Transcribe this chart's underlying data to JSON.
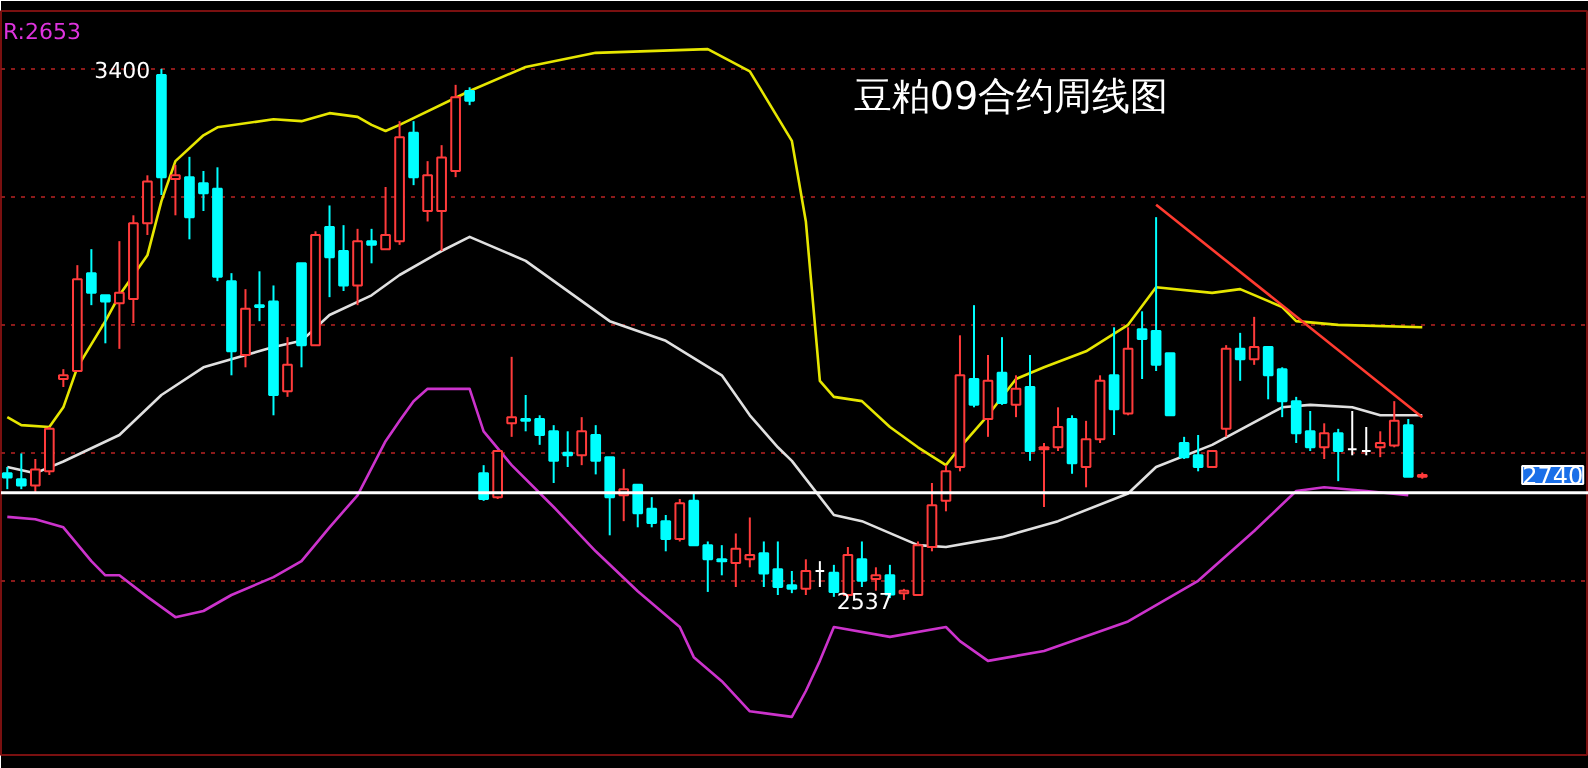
{
  "chart_data": {
    "type": "candlestick",
    "title": "豆粕09合约周线图",
    "categories": [
      null,
      null,
      null,
      null,
      null,
      null,
      null,
      null,
      null,
      null,
      null,
      null,
      null,
      null,
      null,
      null,
      null,
      null,
      null,
      null,
      null,
      null,
      null,
      null,
      null,
      null,
      null,
      null,
      null,
      null,
      null,
      null,
      null,
      null,
      null,
      null,
      null,
      null,
      null,
      null,
      null,
      null,
      null,
      null,
      null,
      null,
      null,
      null,
      null,
      null,
      null,
      null,
      null,
      null,
      null,
      null,
      null,
      null,
      null,
      null,
      null,
      null,
      null,
      null,
      null,
      null,
      null,
      null,
      null,
      null,
      null,
      null,
      null,
      null,
      null,
      null,
      null,
      null,
      null,
      null,
      null,
      null,
      null,
      null,
      null,
      null,
      null,
      null,
      null,
      null,
      null,
      null,
      null,
      null,
      null,
      null,
      null,
      null,
      null,
      null,
      null,
      null
    ],
    "ohlc": [
      [
        2743,
        2753,
        2717,
        2736
      ],
      [
        2733,
        2775,
        2717,
        2723
      ],
      [
        2723,
        2766,
        2710,
        2749
      ],
      [
        2746,
        2818,
        2740,
        2815
      ],
      [
        2896,
        2912,
        2883,
        2902
      ],
      [
        2909,
        3081,
        2909,
        3058
      ],
      [
        3068,
        3107,
        3016,
        3036
      ],
      [
        3032,
        3032,
        2954,
        3022
      ],
      [
        3019,
        3120,
        2945,
        3036
      ],
      [
        3026,
        3162,
        2987,
        3149
      ],
      [
        3149,
        3227,
        3130,
        3217
      ],
      [
        3390,
        3400,
        3195,
        3224
      ],
      [
        3221,
        3244,
        3162,
        3227
      ],
      [
        3224,
        3257,
        3123,
        3159
      ],
      [
        3214,
        3234,
        3169,
        3198
      ],
      [
        3205,
        3240,
        3055,
        3062
      ],
      [
        3055,
        3068,
        2902,
        2941
      ],
      [
        2935,
        3042,
        2915,
        3010
      ],
      [
        3016,
        3071,
        2990,
        3013
      ],
      [
        3022,
        3048,
        2837,
        2870
      ],
      [
        2876,
        2964,
        2867,
        2919
      ],
      [
        3084,
        3084,
        2915,
        2951
      ],
      [
        2951,
        3136,
        2951,
        3130
      ],
      [
        3143,
        3178,
        3029,
        3094
      ],
      [
        3104,
        3146,
        3039,
        3048
      ],
      [
        3048,
        3140,
        3016,
        3120
      ],
      [
        3120,
        3140,
        3084,
        3114
      ],
      [
        3107,
        3208,
        3107,
        3130
      ],
      [
        3120,
        3315,
        3114,
        3289
      ],
      [
        3296,
        3315,
        3211,
        3224
      ],
      [
        3169,
        3250,
        3152,
        3227
      ],
      [
        3169,
        3276,
        3104,
        3256
      ],
      [
        3234,
        3374,
        3224,
        3354
      ],
      [
        3364,
        3370,
        3341,
        3348
      ],
      [
        2743,
        2756,
        2698,
        2701
      ],
      [
        2704,
        2779,
        2701,
        2779
      ],
      [
        2824,
        2932,
        2802,
        2834
      ],
      [
        2831,
        2870,
        2811,
        2828
      ],
      [
        2831,
        2837,
        2789,
        2805
      ],
      [
        2811,
        2821,
        2727,
        2763
      ],
      [
        2776,
        2811,
        2753,
        2772
      ],
      [
        2772,
        2834,
        2756,
        2811
      ],
      [
        2805,
        2821,
        2741,
        2763
      ],
      [
        2769,
        2769,
        2642,
        2704
      ],
      [
        2707,
        2750,
        2665,
        2717
      ],
      [
        2724,
        2724,
        2655,
        2678
      ],
      [
        2685,
        2704,
        2655,
        2662
      ],
      [
        2665,
        2675,
        2616,
        2636
      ],
      [
        2636,
        2701,
        2632,
        2694
      ],
      [
        2698,
        2710,
        2626,
        2626
      ],
      [
        2626,
        2632,
        2550,
        2603
      ],
      [
        2603,
        2626,
        2577,
        2600
      ],
      [
        2597,
        2645,
        2558,
        2620
      ],
      [
        2603,
        2671,
        2590,
        2610
      ],
      [
        2613,
        2632,
        2558,
        2580
      ],
      [
        2587,
        2632,
        2545,
        2558
      ],
      [
        2561,
        2584,
        2548,
        2555
      ],
      [
        2555,
        2603,
        2545,
        2584
      ],
      [
        2584,
        2600,
        2558,
        2584
      ],
      [
        2581,
        2594,
        2542,
        2550
      ],
      [
        2545,
        2623,
        2541,
        2610
      ],
      [
        2603,
        2632,
        2558,
        2568
      ],
      [
        2571,
        2590,
        2552,
        2577
      ],
      [
        2577,
        2594,
        2540,
        2546
      ],
      [
        2548,
        2555,
        2537,
        2552
      ],
      [
        2545,
        2632,
        2545,
        2626
      ],
      [
        2623,
        2727,
        2616,
        2691
      ],
      [
        2698,
        2756,
        2681,
        2746
      ],
      [
        2753,
        2967,
        2746,
        2902
      ],
      [
        2896,
        3016,
        2850,
        2854
      ],
      [
        2831,
        2935,
        2802,
        2893
      ],
      [
        2906,
        2964,
        2854,
        2857
      ],
      [
        2854,
        2902,
        2834,
        2880
      ],
      [
        2883,
        2935,
        2763,
        2779
      ],
      [
        2782,
        2792,
        2688,
        2785
      ],
      [
        2785,
        2850,
        2779,
        2818
      ],
      [
        2831,
        2837,
        2742,
        2759
      ],
      [
        2753,
        2828,
        2720,
        2798
      ],
      [
        2798,
        2902,
        2792,
        2893
      ],
      [
        2902,
        2980,
        2805,
        2847
      ],
      [
        2840,
        2980,
        2837,
        2945
      ],
      [
        2977,
        3006,
        2896,
        2961
      ],
      [
        2974,
        3159,
        2909,
        2919
      ],
      [
        2938,
        2938,
        2837,
        2837
      ],
      [
        2792,
        2802,
        2766,
        2769
      ],
      [
        2772,
        2805,
        2746,
        2753
      ],
      [
        2753,
        2779,
        2753,
        2779
      ],
      [
        2815,
        2951,
        2802,
        2945
      ],
      [
        2945,
        2971,
        2893,
        2928
      ],
      [
        2928,
        2997,
        2919,
        2948
      ],
      [
        2948,
        2948,
        2863,
        2902
      ],
      [
        2912,
        2915,
        2834,
        2860
      ],
      [
        2860,
        2867,
        2792,
        2808
      ],
      [
        2811,
        2844,
        2779,
        2785
      ],
      [
        2785,
        2824,
        2766,
        2808
      ],
      [
        2808,
        2815,
        2730,
        2779
      ],
      [
        2782,
        2844,
        2772,
        2782
      ],
      [
        2779,
        2818,
        2772,
        2779
      ],
      [
        2785,
        2811,
        2769,
        2792
      ],
      [
        2788,
        2860,
        2785,
        2828
      ],
      [
        2821,
        2831,
        2737,
        2737
      ],
      [
        2737,
        2744,
        2734,
        2740
      ]
    ],
    "series": [
      {
        "type": "line",
        "color": "#e6e600",
        "values": [
          2834,
          2821,
          null,
          2818,
          2850,
          2915,
          null,
          2990,
          3032,
          null,
          3097,
          3185,
          3250,
          null,
          3292,
          3305,
          null,
          null,
          null,
          3318,
          null,
          3315,
          null,
          3328,
          null,
          3322,
          3309,
          3299,
          3309,
          null,
          null,
          null,
          null,
          3364,
          null,
          null,
          null,
          3403,
          null,
          null,
          null,
          null,
          3426,
          null,
          null,
          null,
          null,
          null,
          null,
          null,
          3432,
          null,
          null,
          3396,
          null,
          null,
          3283,
          3152,
          2893,
          2867,
          null,
          2860,
          null,
          2818,
          null,
          2785,
          null,
          2756,
          2785,
          null,
          2837,
          null,
          2896,
          null,
          2915,
          null,
          null,
          2941,
          null,
          null,
          2984,
          null,
          3045,
          null,
          null,
          null,
          3036,
          null,
          3042,
          null,
          null,
          3013,
          2990,
          null,
          null,
          2984,
          null,
          null,
          null,
          null,
          null,
          2980
        ]
      },
      {
        "type": "line",
        "color": "#e0e0e0",
        "values": [
          2753,
          null,
          2743,
          null,
          2762,
          null,
          null,
          null,
          2805,
          null,
          null,
          2870,
          null,
          null,
          2915,
          null,
          null,
          null,
          null,
          2948,
          null,
          2958,
          null,
          3000,
          null,
          null,
          3032,
          null,
          3065,
          null,
          null,
          3104,
          null,
          3127,
          null,
          null,
          null,
          3088,
          null,
          null,
          null,
          null,
          null,
          2990,
          null,
          null,
          null,
          2958,
          null,
          null,
          null,
          2902,
          null,
          2837,
          null,
          2785,
          2763,
          null,
          null,
          2675,
          null,
          2665,
          null,
          null,
          null,
          2626,
          null,
          2623,
          null,
          null,
          null,
          2639,
          null,
          null,
          null,
          2665,
          null,
          null,
          null,
          null,
          2710,
          null,
          2753,
          null,
          null,
          null,
          2789,
          null,
          null,
          null,
          null,
          2850,
          null,
          2854,
          null,
          null,
          2850,
          null,
          2837,
          null,
          null,
          2837
        ]
      },
      {
        "type": "line",
        "color": "#cc33cc",
        "values": [
          2672,
          null,
          2668,
          null,
          2655,
          null,
          2600,
          2577,
          2577,
          null,
          2542,
          null,
          2509,
          null,
          2519,
          null,
          2545,
          null,
          null,
          2574,
          null,
          2600,
          null,
          2655,
          null,
          2707,
          null,
          2795,
          2828,
          2860,
          2880,
          null,
          null,
          2880,
          2811,
          null,
          2756,
          null,
          null,
          2688,
          null,
          null,
          2616,
          null,
          null,
          2551,
          null,
          null,
          2493,
          2444,
          null,
          2405,
          null,
          2356,
          null,
          null,
          2347,
          2389,
          2438,
          2493,
          null,
          null,
          null,
          2477,
          null,
          null,
          null,
          2493,
          2470,
          null,
          2438,
          null,
          null,
          null,
          2454,
          null,
          null,
          null,
          null,
          null,
          2502,
          null,
          null,
          null,
          null,
          2568,
          null,
          null,
          null,
          2649,
          null,
          null,
          2714,
          null,
          2720,
          null,
          null,
          2714,
          null,
          null,
          2707,
          null
        ]
      },
      {
        "type": "line",
        "color": "#ff3b30",
        "values": [
          null,
          null,
          null,
          null,
          null,
          null,
          null,
          null,
          null,
          null,
          null,
          null,
          null,
          null,
          null,
          null,
          null,
          null,
          null,
          null,
          null,
          null,
          null,
          null,
          null,
          null,
          null,
          null,
          null,
          null,
          null,
          null,
          null,
          null,
          null,
          null,
          null,
          null,
          null,
          null,
          null,
          null,
          null,
          null,
          null,
          null,
          null,
          null,
          null,
          null,
          null,
          null,
          null,
          null,
          null,
          null,
          null,
          null,
          null,
          null,
          null,
          null,
          null,
          null,
          null,
          null,
          null,
          null,
          null,
          null,
          null,
          null,
          null,
          null,
          null,
          null,
          null,
          null,
          null,
          null,
          null,
          null,
          3179,
          null,
          null,
          null,
          null,
          null,
          null,
          null,
          null,
          null,
          null,
          null,
          null,
          null,
          null,
          null,
          null,
          null,
          null,
          2834
        ]
      }
    ],
    "ylim": [
      2285,
      3494
    ],
    "yticks": [
      {
        "value": 3400,
        "label": null
      },
      {
        "value": 3192,
        "label": null
      },
      {
        "value": 2984,
        "label": null
      },
      {
        "value": 2776,
        "label": null
      },
      {
        "value": 2568,
        "label": null
      }
    ],
    "grid": "y",
    "tick_labels": false,
    "ref_lines": [
      {
        "axis": "y",
        "value": 2711,
        "color": "#ffffff"
      }
    ],
    "annotations": [
      "R:2653",
      "3400",
      "2537",
      "2740"
    ]
  }
}
